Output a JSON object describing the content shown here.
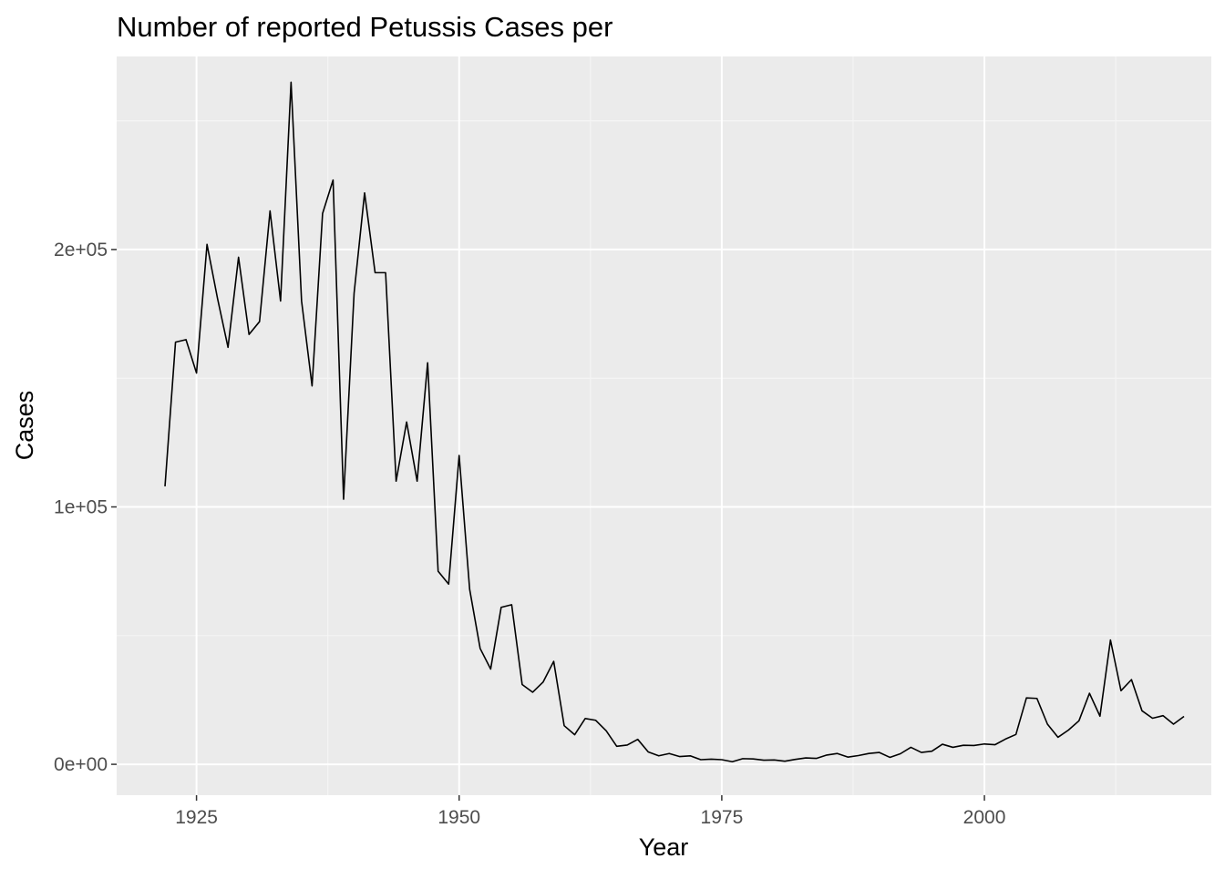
{
  "chart_data": {
    "type": "line",
    "title": "Number of reported Petussis Cases per",
    "xlabel": "Year",
    "ylabel": "Cases",
    "xlim": [
      1917.4,
      2021.6
    ],
    "ylim": [
      -12000,
      275000
    ],
    "x_ticks": [
      1925,
      1950,
      1975,
      2000
    ],
    "x_tick_labels": [
      "1925",
      "1950",
      "1975",
      "2000"
    ],
    "y_ticks": [
      0,
      100000,
      200000
    ],
    "y_tick_labels": [
      "0e+00",
      "1e+05",
      "2e+05"
    ],
    "grid": true,
    "legend": "none",
    "colors": {
      "panel_background": "#ebebeb",
      "grid_major": "#ffffff",
      "grid_minor": "#f5f5f5",
      "line": "#000000",
      "tick_label": "#4d4d4d",
      "tick_mark": "#333333"
    },
    "series": [
      {
        "x": [
          1922,
          1923,
          1924,
          1925,
          1926,
          1927,
          1928,
          1929,
          1930,
          1931,
          1932,
          1933,
          1934,
          1935,
          1936,
          1937,
          1938,
          1939,
          1940,
          1941,
          1942,
          1943,
          1944,
          1945,
          1946,
          1947,
          1948,
          1949,
          1950,
          1951,
          1952,
          1953,
          1954,
          1955,
          1956,
          1957,
          1958,
          1959,
          1960,
          1961,
          1962,
          1963,
          1964,
          1965,
          1966,
          1967,
          1968,
          1969,
          1970,
          1971,
          1972,
          1973,
          1974,
          1975,
          1976,
          1977,
          1978,
          1979,
          1980,
          1981,
          1982,
          1983,
          1984,
          1985,
          1986,
          1987,
          1988,
          1989,
          1990,
          1991,
          1992,
          1993,
          1994,
          1995,
          1996,
          1997,
          1998,
          1999,
          2000,
          2001,
          2002,
          2003,
          2004,
          2005,
          2006,
          2007,
          2008,
          2009,
          2010,
          2011,
          2012,
          2013,
          2014,
          2015,
          2016,
          2017,
          2018,
          2019
        ],
        "y": [
          108000,
          164000,
          165000,
          152000,
          202000,
          181000,
          162000,
          197000,
          167000,
          172000,
          215000,
          180000,
          265000,
          180000,
          147000,
          214000,
          227000,
          103000,
          183000,
          222000,
          191000,
          191000,
          110000,
          133000,
          110000,
          156000,
          75000,
          70000,
          120000,
          68000,
          45000,
          37000,
          61000,
          62000,
          31000,
          28000,
          32000,
          40000,
          15000,
          11500,
          17800,
          17100,
          13000,
          7000,
          7500,
          9700,
          4800,
          3300,
          4200,
          3000,
          3300,
          1800,
          2000,
          1800,
          1000,
          2200,
          2100,
          1600,
          1700,
          1200,
          1900,
          2500,
          2300,
          3600,
          4200,
          2800,
          3400,
          4200,
          4600,
          2700,
          4100,
          6600,
          4600,
          5100,
          7800,
          6600,
          7400,
          7300,
          7900,
          7600,
          9800,
          11600,
          25800,
          25600,
          15600,
          10500,
          13300,
          16900,
          27600,
          18700,
          48300,
          28600,
          32900,
          20800,
          17900,
          18900,
          15600,
          18600
        ]
      }
    ]
  }
}
